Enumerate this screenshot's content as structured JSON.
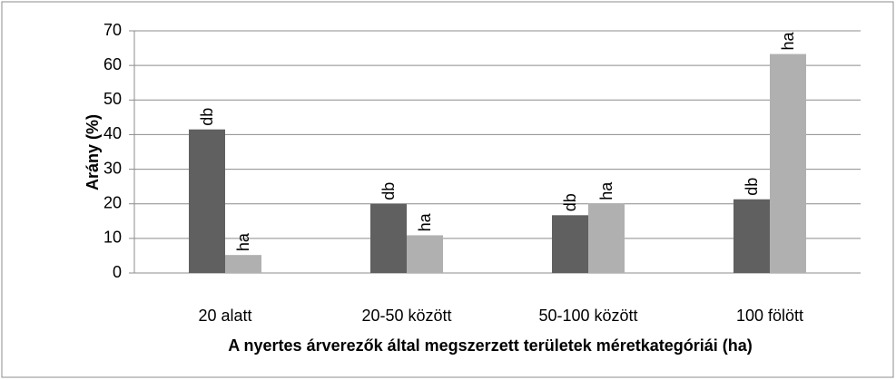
{
  "chart_data": {
    "type": "bar",
    "x_label": "A nyertes árverezők által megszerzett  területek méretkategóriái (ha)",
    "y_label": "Arány (%)",
    "categories": [
      "20 alatt",
      "20-50 között",
      "50-100 között",
      "100 fölött"
    ],
    "series": [
      {
        "name": "db",
        "color": "#606060",
        "values": [
          41.5,
          20,
          16.7,
          21.3
        ]
      },
      {
        "name": "ha",
        "color": "#b0b0b0",
        "values": [
          5.2,
          10.9,
          20,
          63.3
        ]
      }
    ],
    "ylim": [
      0,
      70
    ],
    "yticks": [
      0,
      10,
      20,
      30,
      40,
      50,
      60,
      70
    ],
    "grid": true
  }
}
